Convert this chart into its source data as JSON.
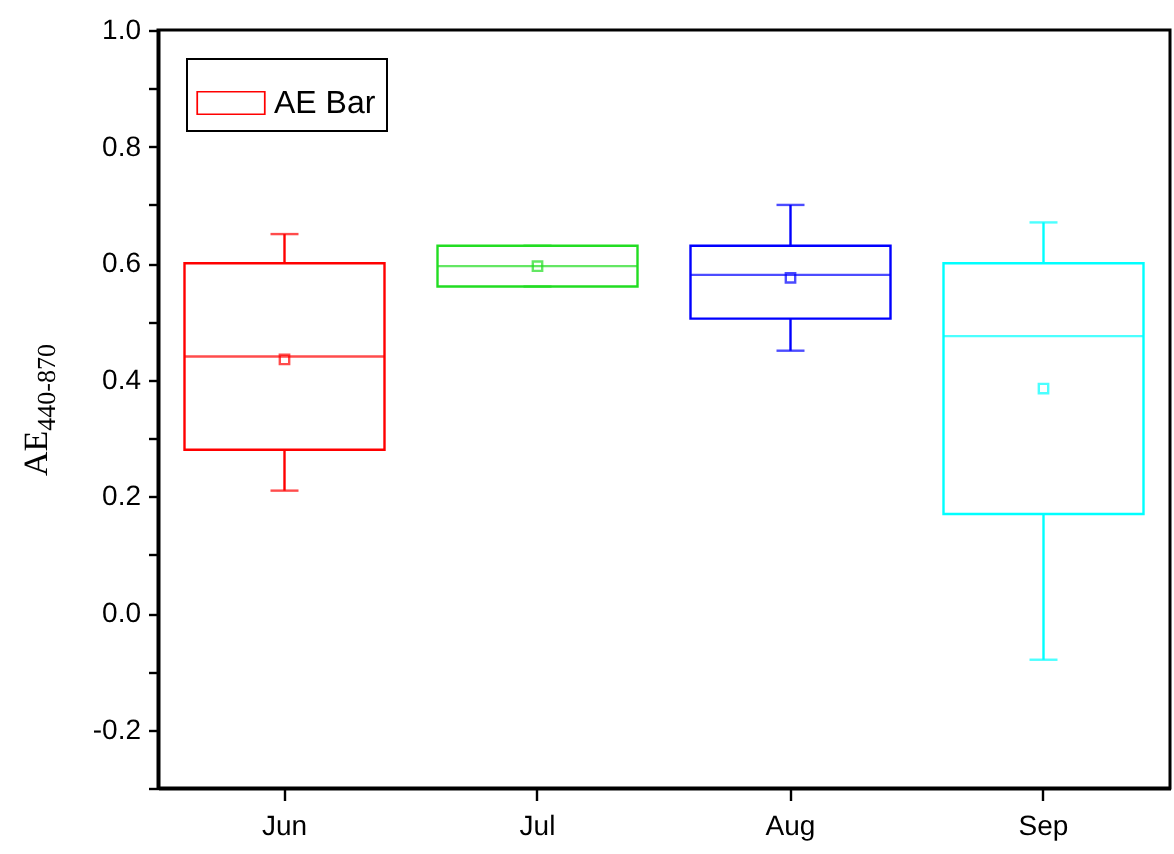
{
  "chart_data": {
    "type": "box",
    "ylabel": "AE$_{440-870}$",
    "categories": [
      "Jun",
      "Jul",
      "Aug",
      "Sep"
    ],
    "series": [
      {
        "name": "AE Bar",
        "boxes": [
          {
            "low": 0.21,
            "q1": 0.28,
            "median": 0.44,
            "q3": 0.6,
            "high": 0.65,
            "mean": 0.435
          },
          {
            "low": 0.56,
            "q1": 0.56,
            "median": 0.595,
            "q3": 0.63,
            "high": 0.63,
            "mean": 0.595
          },
          {
            "low": 0.45,
            "q1": 0.505,
            "median": 0.58,
            "q3": 0.63,
            "high": 0.7,
            "mean": 0.575
          },
          {
            "low": -0.08,
            "q1": 0.17,
            "median": 0.475,
            "q3": 0.6,
            "high": 0.67,
            "mean": 0.385
          }
        ]
      }
    ],
    "colors": [
      "#ff0000",
      "#22dd22",
      "#0000ff",
      "#00ffff"
    ],
    "ylim": [
      -0.3,
      1.0
    ],
    "yticks": [
      {
        "value": -0.3,
        "label": null
      },
      {
        "value": -0.2,
        "label": "-0.2"
      },
      {
        "value": -0.1,
        "label": null
      },
      {
        "value": 0,
        "label": "0.0"
      },
      {
        "value": 0.1,
        "label": null
      },
      {
        "value": 0.2,
        "label": "0.2"
      },
      {
        "value": 0.3,
        "label": null
      },
      {
        "value": 0.4,
        "label": "0.4"
      },
      {
        "value": 0.5,
        "label": null
      },
      {
        "value": 0.6,
        "label": "0.6"
      },
      {
        "value": 0.7,
        "label": null
      },
      {
        "value": 0.8,
        "label": "0.8"
      },
      {
        "value": 0.9,
        "label": null
      },
      {
        "value": 1.0,
        "label": "1.0"
      }
    ],
    "legend": "top left",
    "grid": false,
    "marker": "square"
  }
}
